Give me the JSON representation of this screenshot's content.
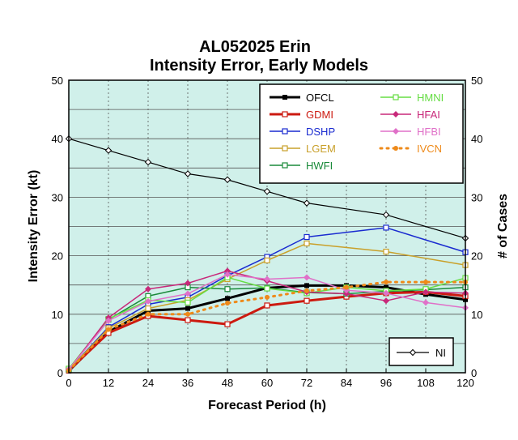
{
  "chart_data": {
    "type": "line",
    "title": "AL052025 Erin",
    "subtitle": "Intensity Error, Early Models",
    "xlabel": "Forecast Period (h)",
    "ylabel": "Intensity Error (kt)",
    "y2label": "# of Cases",
    "x": [
      0,
      12,
      24,
      36,
      48,
      60,
      72,
      84,
      96,
      108,
      120
    ],
    "xlim": [
      0,
      120
    ],
    "ylim": [
      0,
      50
    ],
    "y2lim": [
      0,
      50
    ],
    "xticks": [
      "0",
      "12",
      "24",
      "36",
      "48",
      "60",
      "72",
      "84",
      "96",
      "108",
      "120"
    ],
    "yticks": [
      "0",
      "10",
      "20",
      "30",
      "40",
      "50"
    ],
    "y2ticks": [
      "0",
      "10",
      "20",
      "30",
      "40",
      "50"
    ],
    "grid": true,
    "legend_placement": "top-right",
    "plot_background": "#d0f0ea",
    "series": [
      {
        "name": "OFCL",
        "color": "#000000",
        "width": 3,
        "dash": "",
        "marker": "square-filled",
        "legend_col": 0,
        "x": [
          0,
          12,
          24,
          36,
          48,
          60,
          72,
          84,
          96,
          108,
          120
        ],
        "values": [
          0.3,
          7.0,
          10.6,
          11.0,
          12.7,
          14.5,
          14.9,
          14.9,
          14.6,
          13.4,
          12.5
        ]
      },
      {
        "name": "GDMI",
        "color": "#cc1a10",
        "width": 3,
        "dash": "",
        "marker": "square-open",
        "legend_col": 0,
        "x": [
          0,
          12,
          24,
          36,
          48,
          60,
          72,
          84,
          96,
          108,
          120
        ],
        "values": [
          0.4,
          6.8,
          9.7,
          9.0,
          8.3,
          11.5,
          12.3,
          13.0,
          13.6,
          13.8,
          13.1
        ]
      },
      {
        "name": "DSHP",
        "color": "#1a2bd0",
        "width": 1.5,
        "dash": "",
        "marker": "square-open",
        "legend_col": 0,
        "x": [
          0,
          12,
          24,
          36,
          48,
          60,
          72,
          96,
          120
        ],
        "values": [
          0.5,
          7.8,
          11.7,
          12.9,
          16.6,
          19.8,
          23.2,
          24.8,
          20.6
        ]
      },
      {
        "name": "LGEM",
        "color": "#c9a02a",
        "width": 1.5,
        "dash": "",
        "marker": "square-open",
        "legend_col": 0,
        "x": [
          0,
          12,
          24,
          36,
          48,
          60,
          72,
          96,
          120
        ],
        "values": [
          0.5,
          7.6,
          11.0,
          12.4,
          16.0,
          19.2,
          22.1,
          20.7,
          18.4
        ]
      },
      {
        "name": "HWFI",
        "color": "#1a8a3a",
        "width": 1.5,
        "dash": "",
        "marker": "square-open",
        "legend_col": 0,
        "x": [
          0,
          12,
          24,
          36,
          48,
          60,
          72,
          84,
          96,
          108,
          120
        ],
        "values": [
          0.6,
          9.1,
          13.1,
          14.6,
          14.3,
          14.5,
          13.7,
          13.5,
          13.9,
          14.2,
          14.6
        ]
      },
      {
        "name": "HMNI",
        "color": "#66dd44",
        "width": 1.5,
        "dash": "",
        "marker": "square-open",
        "legend_col": 1,
        "x": [
          0,
          12,
          24,
          36,
          48,
          60,
          72,
          84,
          96,
          108,
          120
        ],
        "values": [
          0.7,
          9.2,
          12.4,
          12.0,
          16.3,
          14.4,
          13.6,
          14.6,
          14.0,
          14.3,
          16.2
        ]
      },
      {
        "name": "HFAI",
        "color": "#c8287a",
        "width": 1.5,
        "dash": "",
        "marker": "diamond-filled",
        "legend_col": 1,
        "x": [
          0,
          12,
          24,
          36,
          48,
          60,
          72,
          84,
          96,
          108,
          120
        ],
        "values": [
          0.5,
          9.4,
          14.3,
          15.3,
          17.4,
          15.7,
          13.8,
          13.5,
          12.3,
          13.8,
          13.6
        ]
      },
      {
        "name": "HFBI",
        "color": "#e070c8",
        "width": 1.5,
        "dash": "",
        "marker": "diamond-filled",
        "legend_col": 1,
        "x": [
          0,
          12,
          24,
          36,
          48,
          60,
          72,
          84,
          96,
          108,
          120
        ],
        "values": [
          0.6,
          8.9,
          12.2,
          13.5,
          16.8,
          16.0,
          16.3,
          14.1,
          13.6,
          12.0,
          11.1
        ]
      },
      {
        "name": "IVCN",
        "color": "#ee8a1a",
        "width": 3,
        "dash": "2,6",
        "marker": "dot",
        "legend_col": 1,
        "x": [
          0,
          12,
          24,
          36,
          48,
          60,
          72,
          84,
          96,
          108,
          120
        ],
        "values": [
          0.4,
          7.4,
          10.0,
          10.0,
          11.9,
          12.9,
          14.0,
          14.6,
          15.5,
          15.5,
          15.5
        ]
      }
    ],
    "cases_series": {
      "name": "NI",
      "color": "#000000",
      "x": [
        0,
        12,
        24,
        36,
        48,
        60,
        72,
        96,
        120
      ],
      "values": [
        40,
        38,
        36,
        34,
        33,
        31,
        29,
        27,
        23
      ]
    }
  }
}
